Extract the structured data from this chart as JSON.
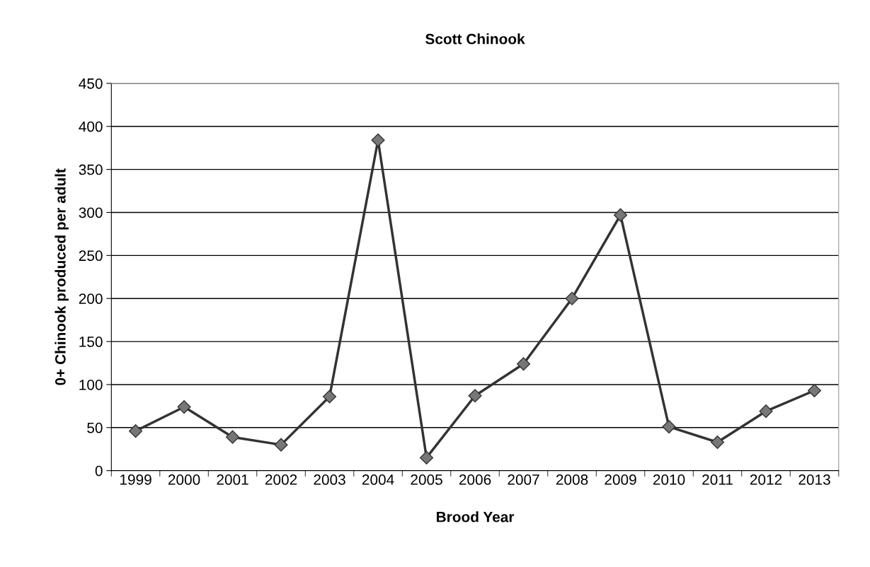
{
  "chart_data": {
    "type": "line",
    "title": "Scott Chinook",
    "xlabel": "Brood Year",
    "ylabel": "0+ Chinook produced per adult",
    "categories": [
      "1999",
      "2000",
      "2001",
      "2002",
      "2003",
      "2004",
      "2005",
      "2006",
      "2007",
      "2008",
      "2009",
      "2010",
      "2011",
      "2012",
      "2013"
    ],
    "series": [
      {
        "color": "#333333",
        "values": [
          46,
          74,
          39,
          30,
          86,
          384,
          15,
          87,
          124,
          200,
          297,
          51,
          33,
          69,
          93
        ]
      }
    ],
    "ylim": [
      0,
      450
    ],
    "yticks": [
      0,
      50,
      100,
      150,
      200,
      250,
      300,
      350,
      400,
      450
    ],
    "grid": "y",
    "marker": "diamond",
    "line_style": "solid",
    "legend": false
  }
}
